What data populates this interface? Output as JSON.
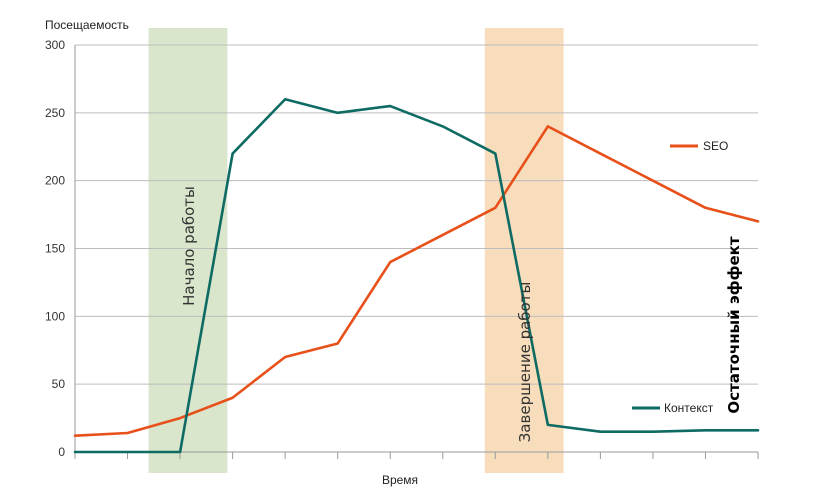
{
  "chart_data": {
    "type": "line",
    "ylabel": "Посещаемость",
    "xlabel": "Время",
    "ylim": [
      0,
      300
    ],
    "yticks": [
      0,
      50,
      100,
      150,
      200,
      250,
      300
    ],
    "grid": true,
    "x": [
      0,
      1,
      2,
      3,
      4,
      5,
      6,
      7,
      8,
      9,
      10,
      11,
      12,
      13
    ],
    "series": [
      {
        "name": "SEO",
        "color": "#e8501a",
        "values": [
          12,
          14,
          25,
          40,
          70,
          80,
          140,
          160,
          180,
          240,
          220,
          200,
          180,
          170
        ]
      },
      {
        "name": "Контекст",
        "color": "#0e6b63",
        "values": [
          0,
          0,
          0,
          220,
          260,
          250,
          255,
          240,
          220,
          20,
          15,
          15,
          16,
          16
        ]
      }
    ],
    "bands": [
      {
        "label": "Начало работы",
        "color": "#d9e6cc",
        "from": 1.4,
        "to": 2.9
      },
      {
        "label": "Завершение работы",
        "color": "#f7ddbb",
        "from": 7.8,
        "to": 9.3
      }
    ],
    "annotation": "Остаточный эффект"
  }
}
